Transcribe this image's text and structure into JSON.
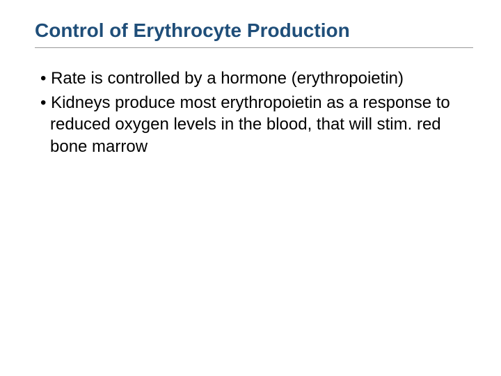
{
  "title": {
    "text": "Control of Erythrocyte Production",
    "color": "#1f4e79",
    "fontsize": 28,
    "font_weight": "bold",
    "underline_color": "#999999"
  },
  "body": {
    "text_color": "#000000",
    "fontsize": 24,
    "bullets": [
      "Rate is controlled by a hormone (erythropoietin)",
      "Kidneys produce most erythropoietin as a response to reduced oxygen levels in the blood, that will stim. red bone marrow"
    ]
  },
  "background_color": "#ffffff",
  "slide_width": 720,
  "slide_height": 540
}
